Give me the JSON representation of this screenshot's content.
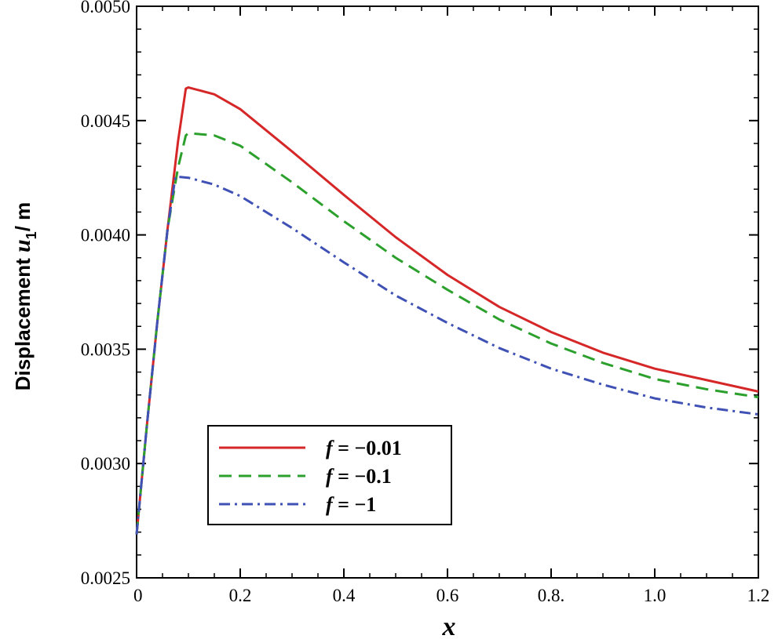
{
  "chart_data": {
    "type": "line",
    "xlabel": "x",
    "ylabel": {
      "prefix": "Displacement ",
      "var": "u",
      "sub": "1",
      "suffix": "/ m"
    },
    "xlim": [
      0,
      1.2
    ],
    "ylim": [
      0.0025,
      0.005
    ],
    "x_ticks": [
      {
        "value": 0,
        "label": "0"
      },
      {
        "value": 0.2,
        "label": "0.2"
      },
      {
        "value": 0.4,
        "label": "0.4"
      },
      {
        "value": 0.6,
        "label": "0.6"
      },
      {
        "value": 0.8,
        "label": "0.8."
      },
      {
        "value": 1.0,
        "label": "1.0"
      },
      {
        "value": 1.2,
        "label": "1.2"
      }
    ],
    "y_ticks": [
      {
        "value": 0.0025,
        "label": "0.0025"
      },
      {
        "value": 0.003,
        "label": "0.0030"
      },
      {
        "value": 0.0035,
        "label": "0.0035"
      },
      {
        "value": 0.004,
        "label": "0.0040"
      },
      {
        "value": 0.0045,
        "label": "0.0045"
      },
      {
        "value": 0.005,
        "label": "0.0050"
      }
    ],
    "grid": false,
    "legend_position": "bottom-left",
    "series": [
      {
        "name": "f = −0.01",
        "f_label": "f",
        "value_label": " = −0.01",
        "color": "#d62728",
        "dash": "solid",
        "x": [
          0,
          0.02,
          0.04,
          0.06,
          0.08,
          0.095,
          0.1,
          0.15,
          0.2,
          0.3,
          0.4,
          0.5,
          0.6,
          0.7,
          0.8,
          0.9,
          1.0,
          1.1,
          1.2
        ],
        "y": [
          0.00269,
          0.00317,
          0.00362,
          0.00403,
          0.00441,
          0.00464,
          0.004645,
          0.004615,
          0.00455,
          0.004365,
          0.004175,
          0.00399,
          0.003825,
          0.003685,
          0.003575,
          0.003485,
          0.003415,
          0.003365,
          0.003315
        ]
      },
      {
        "name": "f = −0.1",
        "f_label": "f",
        "value_label": " = −0.1",
        "color": "#2ca02c",
        "dash": "dashed",
        "x": [
          0,
          0.02,
          0.04,
          0.06,
          0.08,
          0.095,
          0.1,
          0.15,
          0.2,
          0.3,
          0.4,
          0.5,
          0.6,
          0.7,
          0.8,
          0.9,
          1.0,
          1.1,
          1.2
        ],
        "y": [
          0.00269,
          0.00317,
          0.00362,
          0.00403,
          0.004295,
          0.004435,
          0.004445,
          0.004435,
          0.00439,
          0.00423,
          0.00406,
          0.0039,
          0.00376,
          0.00363,
          0.003525,
          0.00344,
          0.00337,
          0.003325,
          0.00329
        ]
      },
      {
        "name": "f = −1",
        "f_label": "f",
        "value_label": " = −1",
        "color": "#3f51b5",
        "dash": "dashdot",
        "x": [
          0,
          0.02,
          0.04,
          0.06,
          0.075,
          0.1,
          0.15,
          0.2,
          0.3,
          0.4,
          0.5,
          0.6,
          0.7,
          0.8,
          0.9,
          1.0,
          1.1,
          1.2
        ],
        "y": [
          0.00269,
          0.00317,
          0.00362,
          0.00403,
          0.004255,
          0.00425,
          0.00422,
          0.00417,
          0.00403,
          0.00388,
          0.003735,
          0.003615,
          0.003505,
          0.003415,
          0.003345,
          0.003285,
          0.003245,
          0.003215
        ]
      }
    ]
  }
}
